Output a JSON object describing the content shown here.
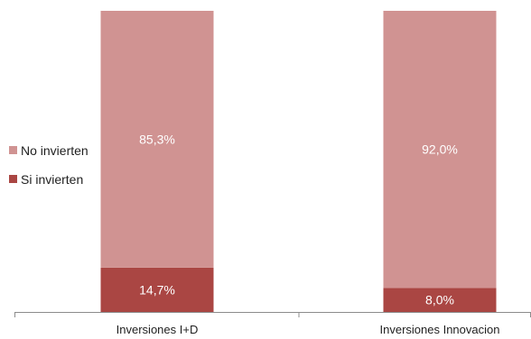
{
  "chart_data": {
    "type": "bar",
    "stacked": true,
    "percent_stacked": true,
    "categories": [
      "Inversiones I+D",
      "Inversiones Innovacion"
    ],
    "series": [
      {
        "name": "Si invierten",
        "values": [
          14.7,
          8.0
        ],
        "labels": [
          "14,7%",
          "8,0%"
        ],
        "color": "#AA4643"
      },
      {
        "name": "No invierten",
        "values": [
          85.3,
          92.0
        ],
        "labels": [
          "85,3%",
          "92,0%"
        ],
        "color": "#D09392"
      }
    ],
    "ylim": [
      0,
      100
    ],
    "grid": false,
    "legend_position": "left"
  },
  "legend": {
    "items": [
      {
        "label": "No invierten",
        "color": "#D09392"
      },
      {
        "label": "Si invierten",
        "color": "#AA4643"
      }
    ]
  },
  "colors": {
    "axis": "#8c8c8c"
  }
}
